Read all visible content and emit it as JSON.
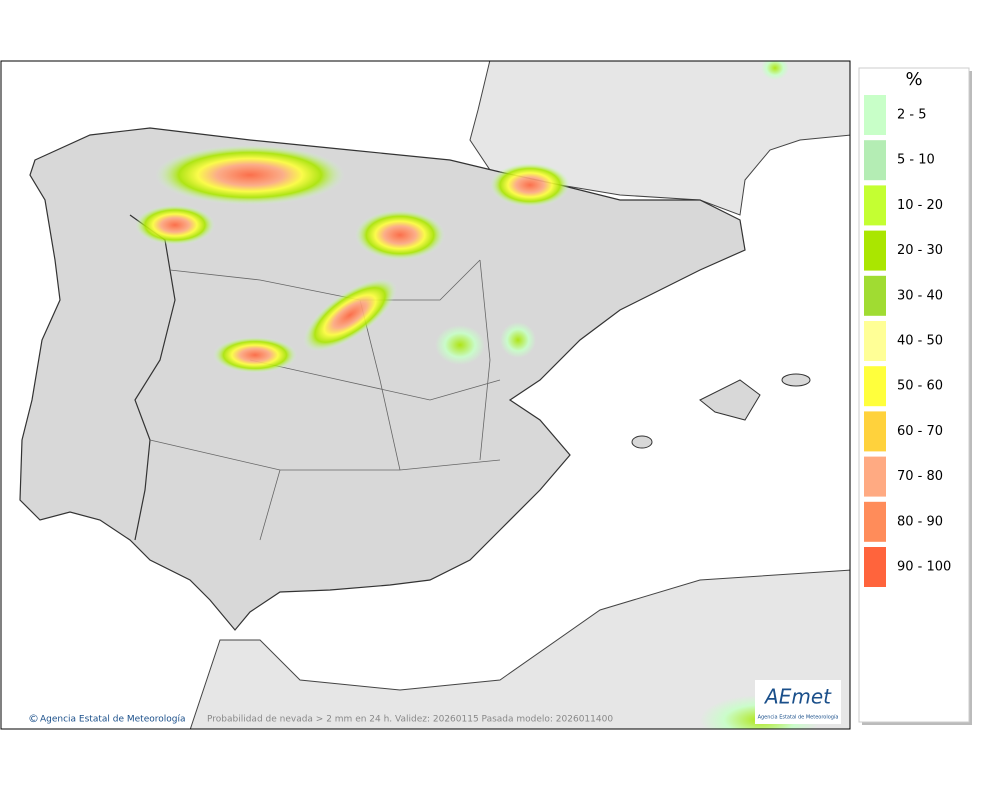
{
  "map": {
    "caption": "Probabilidad de nevada > 2 mm en 24 h. Validez: 20260115 Pasada modelo: 2026011400",
    "credit": "Agencia Estatal de Meteorología",
    "logo": {
      "name": "AEmet",
      "subtitle": "Agencia Estatal de Meteorología"
    }
  },
  "legend": {
    "title": "%",
    "items": [
      {
        "label": "2 - 5",
        "color": "#c8ffc8"
      },
      {
        "label": "5 - 10",
        "color": "#b4edb4"
      },
      {
        "label": "10 - 20",
        "color": "#c4ff32"
      },
      {
        "label": "20 - 30",
        "color": "#aae600"
      },
      {
        "label": "30 - 40",
        "color": "#a0dc32"
      },
      {
        "label": "40 - 50",
        "color": "#ffff96"
      },
      {
        "label": "50 - 60",
        "color": "#ffff3c"
      },
      {
        "label": "60 - 70",
        "color": "#ffd23c"
      },
      {
        "label": "70 - 80",
        "color": "#ffaa82"
      },
      {
        "label": "80 - 90",
        "color": "#ff8c5a"
      },
      {
        "label": "90 - 100",
        "color": "#ff643c"
      }
    ]
  }
}
